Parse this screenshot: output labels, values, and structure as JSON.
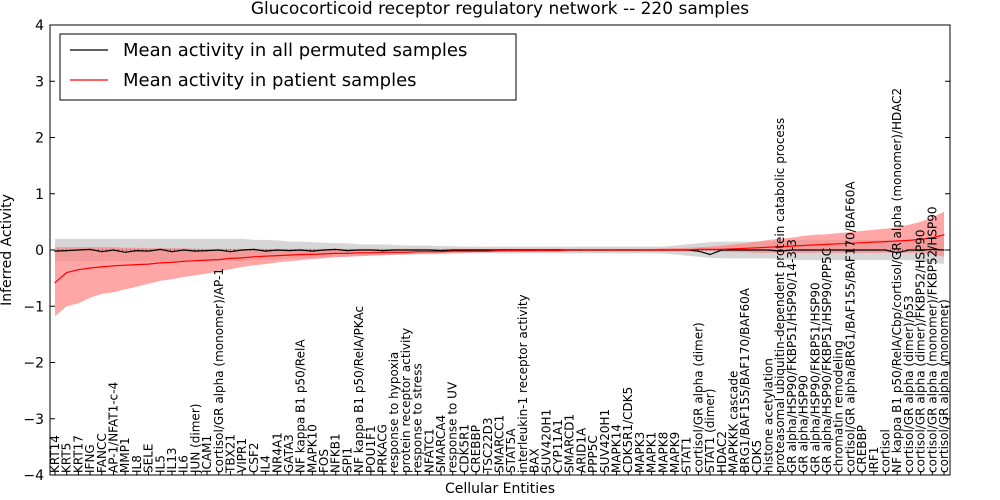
{
  "chart_data": {
    "type": "line",
    "title": "Glucocorticoid receptor regulatory network -- 220 samples",
    "xlabel": "Cellular Entities",
    "ylabel": "Inferred Activity",
    "ylim": [
      -4,
      4
    ],
    "yticks": [
      -4,
      -3,
      -2,
      -1,
      0,
      1,
      2,
      3,
      4
    ],
    "legend_position": "top-left",
    "colors": {
      "permuted": "#000000",
      "patient": "#ff0000",
      "patient_band": "#ff8080",
      "permuted_band": "#c8c8c8"
    },
    "categories": [
      "KRT14",
      "KRT5",
      "KRT17",
      "IFNG",
      "FANCC",
      "AP-1/NFAT1-c-4",
      "MMP1",
      "IL8",
      "SELE",
      "IL5",
      "IL13",
      "IL6",
      "JUN (dimer)",
      "ICAM1",
      "cortisol/GR alpha (monomer)/AP-1",
      "TBX21",
      "VIPR1",
      "CSF2",
      "IL4",
      "NR4A1",
      "GATA3",
      "NF kappa B1 p50/RelA",
      "MAPK10",
      "FOS",
      "NFKB1",
      "SPI1",
      "NF kappa B1 p50/RelA/PKAc",
      "POU1F1",
      "PRKACG",
      "response to hypoxia",
      "protein receptor activity",
      "response to stress",
      "NFATC1",
      "SMARCA4",
      "response to UV",
      "CDK5R1",
      "CREBBP",
      "TSC22D3",
      "SMARCC1",
      "STAT5A",
      "interleukin-1 receptor activity",
      "BAX",
      "SUV420H1",
      "CYP11A1",
      "SMARCD1",
      "ARID1A",
      "PPP5C",
      "SUV420H1",
      "MAPK14",
      "CDK5R1/CDK5",
      "MAPK3",
      "MAPK1",
      "MAPK8",
      "MAPK9",
      "STAT1",
      "cortisol/GR alpha (dimer)",
      "STAT1 (dimer)",
      "HDAC2",
      "MAPKKK cascade",
      "BRG1/BAF155/BAF170/BAF60A",
      "CDK5",
      "histone acetylation",
      "proteasomal ubiquitin-dependent protein catabolic process",
      "GR alpha/HSP90/FKBP51/HSP90/14-3-3",
      "GR alpha/HSP90",
      "GR alpha/HSP90/FKBP51/HSP90",
      "GR alpha/HSP90/FKBP51/HSP90/PP5C",
      "chromatin remodeling",
      "cortisol/GR alpha/BRG1/BAF155/BAF170/BAF60A",
      "CREBBP",
      "IRF1",
      "cortisol",
      "NF kappa B1 p50/RelA/Cbp/cortisol/GR alpha (monomer)/HDAC2",
      "cortisol/GR alpha (dimer)/p53",
      "cortisol/GR alpha (dimer)/FKBP52/HSP90",
      "cortisol/GR alpha (monomer)/FKBP52/HSP90",
      "cortisol/GR alpha (monomer)"
    ],
    "series": [
      {
        "name": "Mean activity in all permuted samples",
        "values": [
          -0.02,
          -0.01,
          0.0,
          0.01,
          -0.03,
          0.0,
          -0.04,
          -0.01,
          -0.02,
          0.01,
          -0.03,
          0.0,
          -0.02,
          -0.01,
          0.0,
          -0.03,
          0.0,
          0.01,
          -0.02,
          0.0,
          -0.01,
          0.0,
          -0.02,
          0.0,
          0.01,
          -0.01,
          0.0,
          0.0,
          -0.01,
          0.0,
          0.0,
          0.0,
          0.0,
          -0.01,
          0.0,
          0.0,
          0.0,
          0.0,
          0.0,
          0.0,
          0.0,
          0.0,
          0.0,
          0.0,
          0.0,
          0.0,
          0.0,
          0.0,
          0.0,
          0.0,
          0.0,
          0.0,
          0.0,
          0.0,
          0.0,
          -0.02,
          -0.08,
          0.0,
          0.0,
          0.0,
          0.0,
          0.0,
          -0.02,
          0.0,
          0.0,
          0.0,
          0.0,
          0.0,
          0.0,
          0.0,
          0.0,
          0.0,
          -0.05,
          0.0,
          0.0,
          0.01,
          0.0
        ],
        "band_low": [
          -0.2,
          -0.2,
          -0.2,
          -0.2,
          -0.2,
          -0.2,
          -0.2,
          -0.2,
          -0.2,
          -0.2,
          -0.2,
          -0.2,
          -0.2,
          -0.2,
          -0.2,
          -0.2,
          -0.2,
          -0.18,
          -0.18,
          -0.17,
          -0.15,
          -0.15,
          -0.14,
          -0.13,
          -0.12,
          -0.12,
          -0.1,
          -0.1,
          -0.1,
          -0.09,
          -0.08,
          -0.08,
          -0.08,
          -0.07,
          -0.07,
          -0.06,
          -0.06,
          -0.06,
          -0.06,
          -0.06,
          -0.06,
          -0.06,
          -0.06,
          -0.06,
          -0.06,
          -0.06,
          -0.06,
          -0.06,
          -0.06,
          -0.06,
          -0.06,
          -0.06,
          -0.06,
          -0.08,
          -0.1,
          -0.12,
          -0.14,
          -0.15,
          -0.15,
          -0.15,
          -0.15,
          -0.15,
          -0.16,
          -0.18,
          -0.18,
          -0.18,
          -0.18,
          -0.18,
          -0.18,
          -0.18,
          -0.18,
          -0.18,
          -0.18,
          -0.18,
          -0.2,
          -0.22,
          -0.25
        ],
        "band_high": [
          0.2,
          0.2,
          0.2,
          0.2,
          0.2,
          0.2,
          0.2,
          0.2,
          0.2,
          0.2,
          0.2,
          0.2,
          0.2,
          0.2,
          0.2,
          0.2,
          0.2,
          0.18,
          0.18,
          0.17,
          0.15,
          0.15,
          0.14,
          0.13,
          0.12,
          0.12,
          0.1,
          0.1,
          0.1,
          0.09,
          0.08,
          0.08,
          0.08,
          0.07,
          0.07,
          0.06,
          0.06,
          0.06,
          0.06,
          0.06,
          0.06,
          0.06,
          0.06,
          0.06,
          0.06,
          0.06,
          0.06,
          0.06,
          0.06,
          0.06,
          0.06,
          0.06,
          0.06,
          0.08,
          0.1,
          0.12,
          0.14,
          0.15,
          0.15,
          0.15,
          0.15,
          0.15,
          0.16,
          0.18,
          0.18,
          0.18,
          0.18,
          0.18,
          0.18,
          0.18,
          0.18,
          0.18,
          0.18,
          0.18,
          0.2,
          0.22,
          0.25
        ]
      },
      {
        "name": "Mean activity in patient samples",
        "values": [
          -0.58,
          -0.4,
          -0.35,
          -0.32,
          -0.3,
          -0.28,
          -0.27,
          -0.26,
          -0.25,
          -0.23,
          -0.22,
          -0.2,
          -0.19,
          -0.18,
          -0.17,
          -0.15,
          -0.14,
          -0.12,
          -0.11,
          -0.1,
          -0.09,
          -0.08,
          -0.08,
          -0.07,
          -0.06,
          -0.06,
          -0.05,
          -0.05,
          -0.04,
          -0.04,
          -0.04,
          -0.03,
          -0.03,
          -0.03,
          -0.02,
          -0.02,
          -0.02,
          -0.02,
          -0.01,
          -0.01,
          -0.01,
          -0.01,
          -0.01,
          -0.01,
          0.0,
          0.0,
          0.0,
          0.0,
          0.0,
          0.0,
          0.0,
          0.0,
          0.0,
          0.0,
          0.0,
          0.01,
          0.01,
          0.01,
          0.02,
          0.03,
          0.04,
          0.05,
          0.06,
          0.07,
          0.08,
          0.09,
          0.1,
          0.11,
          0.12,
          0.13,
          0.14,
          0.15,
          0.16,
          0.17,
          0.19,
          0.22,
          0.27
        ],
        "band_low": [
          -1.18,
          -1.0,
          -0.95,
          -0.85,
          -0.78,
          -0.75,
          -0.7,
          -0.65,
          -0.6,
          -0.55,
          -0.52,
          -0.48,
          -0.45,
          -0.42,
          -0.38,
          -0.34,
          -0.3,
          -0.27,
          -0.25,
          -0.22,
          -0.2,
          -0.18,
          -0.16,
          -0.15,
          -0.13,
          -0.12,
          -0.11,
          -0.1,
          -0.09,
          -0.08,
          -0.08,
          -0.07,
          -0.06,
          -0.06,
          -0.05,
          -0.05,
          -0.04,
          -0.04,
          -0.03,
          -0.03,
          -0.03,
          -0.02,
          -0.02,
          -0.02,
          -0.02,
          -0.02,
          -0.02,
          -0.02,
          -0.02,
          -0.02,
          -0.02,
          -0.02,
          -0.02,
          -0.02,
          -0.02,
          -0.02,
          -0.02,
          -0.03,
          -0.03,
          -0.04,
          -0.05,
          -0.05,
          -0.05,
          -0.05,
          -0.05,
          -0.05,
          -0.05,
          -0.05,
          -0.05,
          -0.05,
          -0.05,
          -0.05,
          -0.05,
          -0.05,
          -0.05,
          -0.08,
          -0.12
        ],
        "band_high": [
          0.05,
          0.05,
          0.05,
          0.05,
          0.05,
          0.05,
          0.04,
          0.04,
          0.03,
          0.03,
          0.03,
          0.03,
          0.02,
          0.02,
          0.02,
          0.02,
          0.02,
          0.02,
          0.02,
          0.02,
          0.02,
          0.02,
          0.02,
          0.02,
          0.02,
          0.02,
          0.02,
          0.02,
          0.02,
          0.02,
          0.02,
          0.02,
          0.02,
          0.02,
          0.02,
          0.02,
          0.02,
          0.02,
          0.02,
          0.02,
          0.02,
          0.02,
          0.02,
          0.02,
          0.02,
          0.02,
          0.02,
          0.02,
          0.02,
          0.02,
          0.02,
          0.02,
          0.03,
          0.03,
          0.04,
          0.05,
          0.06,
          0.08,
          0.1,
          0.12,
          0.15,
          0.18,
          0.2,
          0.22,
          0.25,
          0.27,
          0.28,
          0.3,
          0.32,
          0.34,
          0.36,
          0.38,
          0.4,
          0.45,
          0.5,
          0.58,
          0.68
        ]
      }
    ],
    "legend": [
      "Mean activity in all permuted samples",
      "Mean activity in patient samples"
    ]
  }
}
